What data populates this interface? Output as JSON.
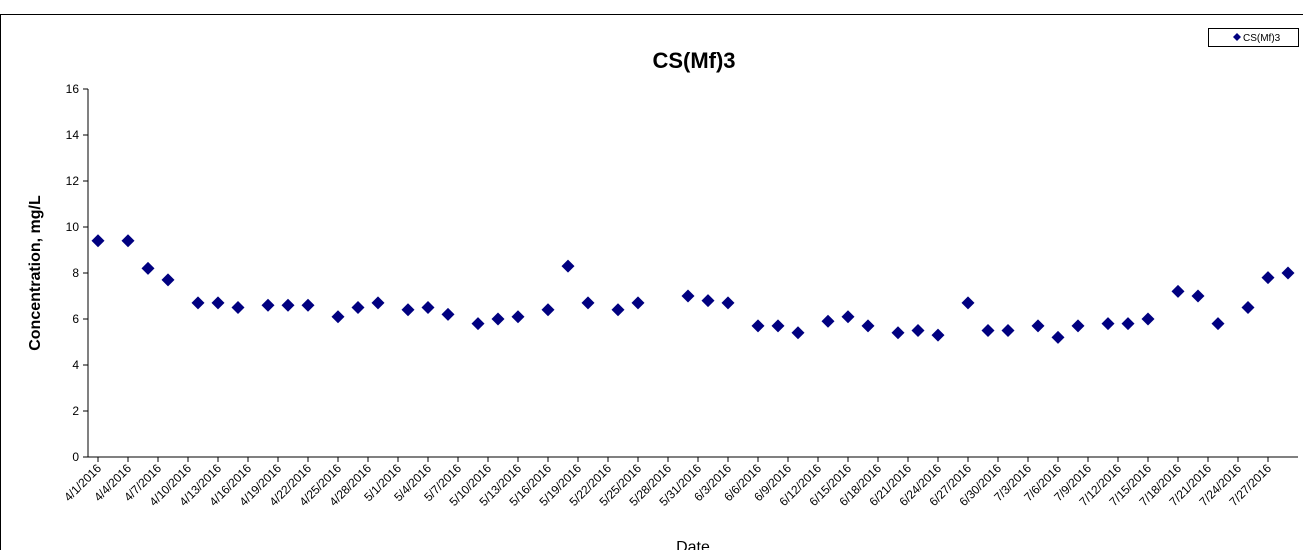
{
  "chart_data": {
    "type": "scatter",
    "title": "CS(Mf)3",
    "x_label": "Date",
    "y_label": "Concentration, mg/L",
    "series": [
      {
        "name": "CS(Mf)3",
        "color": "#000080",
        "x": [
          "4/1/2016",
          "4/4/2016",
          "4/6/2016",
          "4/8/2016",
          "4/11/2016",
          "4/13/2016",
          "4/15/2016",
          "4/18/2016",
          "4/20/2016",
          "4/22/2016",
          "4/25/2016",
          "4/27/2016",
          "4/29/2016",
          "5/2/2016",
          "5/4/2016",
          "5/6/2016",
          "5/9/2016",
          "5/11/2016",
          "5/13/2016",
          "5/16/2016",
          "5/18/2016",
          "5/20/2016",
          "5/23/2016",
          "5/25/2016",
          "5/30/2016",
          "6/1/2016",
          "6/3/2016",
          "6/6/2016",
          "6/8/2016",
          "6/10/2016",
          "6/13/2016",
          "6/15/2016",
          "6/17/2016",
          "6/20/2016",
          "6/22/2016",
          "6/24/2016",
          "6/27/2016",
          "6/29/2016",
          "7/1/2016",
          "7/4/2016",
          "7/6/2016",
          "7/8/2016",
          "7/11/2016",
          "7/13/2016",
          "7/15/2016",
          "7/18/2016",
          "7/20/2016",
          "7/22/2016",
          "7/25/2016",
          "7/27/2016",
          "7/29/2016"
        ],
        "values": [
          9.4,
          9.4,
          8.2,
          7.7,
          6.7,
          6.7,
          6.5,
          6.6,
          6.6,
          6.6,
          6.1,
          6.5,
          6.7,
          6.4,
          6.5,
          6.2,
          5.8,
          6.0,
          6.1,
          6.4,
          8.3,
          6.7,
          6.4,
          6.7,
          7.0,
          6.8,
          6.7,
          5.7,
          5.7,
          5.4,
          5.9,
          6.1,
          5.7,
          5.4,
          5.5,
          5.3,
          6.7,
          5.5,
          5.5,
          5.7,
          5.2,
          5.7,
          5.8,
          5.8,
          6.0,
          7.2,
          7.0,
          5.8,
          6.5,
          7.8,
          8.0
        ]
      }
    ],
    "xlim": [
      "3/31/2016",
      "7/30/2016"
    ],
    "xticks": [
      "4/1/2016",
      "4/4/2016",
      "4/7/2016",
      "4/10/2016",
      "4/13/2016",
      "4/16/2016",
      "4/19/2016",
      "4/22/2016",
      "4/25/2016",
      "4/28/2016",
      "5/1/2016",
      "5/4/2016",
      "5/7/2016",
      "5/10/2016",
      "5/13/2016",
      "5/16/2016",
      "5/19/2016",
      "5/22/2016",
      "5/25/2016",
      "5/28/2016",
      "5/31/2016",
      "6/3/2016",
      "6/6/2016",
      "6/9/2016",
      "6/12/2016",
      "6/15/2016",
      "6/18/2016",
      "6/21/2016",
      "6/24/2016",
      "6/27/2016",
      "6/30/2016",
      "7/3/2016",
      "7/6/2016",
      "7/9/2016",
      "7/12/2016",
      "7/15/2016",
      "7/18/2016",
      "7/21/2016",
      "7/24/2016",
      "7/27/2016"
    ],
    "ylim": [
      0,
      16
    ],
    "yticks": [
      0,
      2,
      4,
      6,
      8,
      10,
      12,
      14,
      16
    ],
    "grid": false,
    "legend": "top-right"
  }
}
